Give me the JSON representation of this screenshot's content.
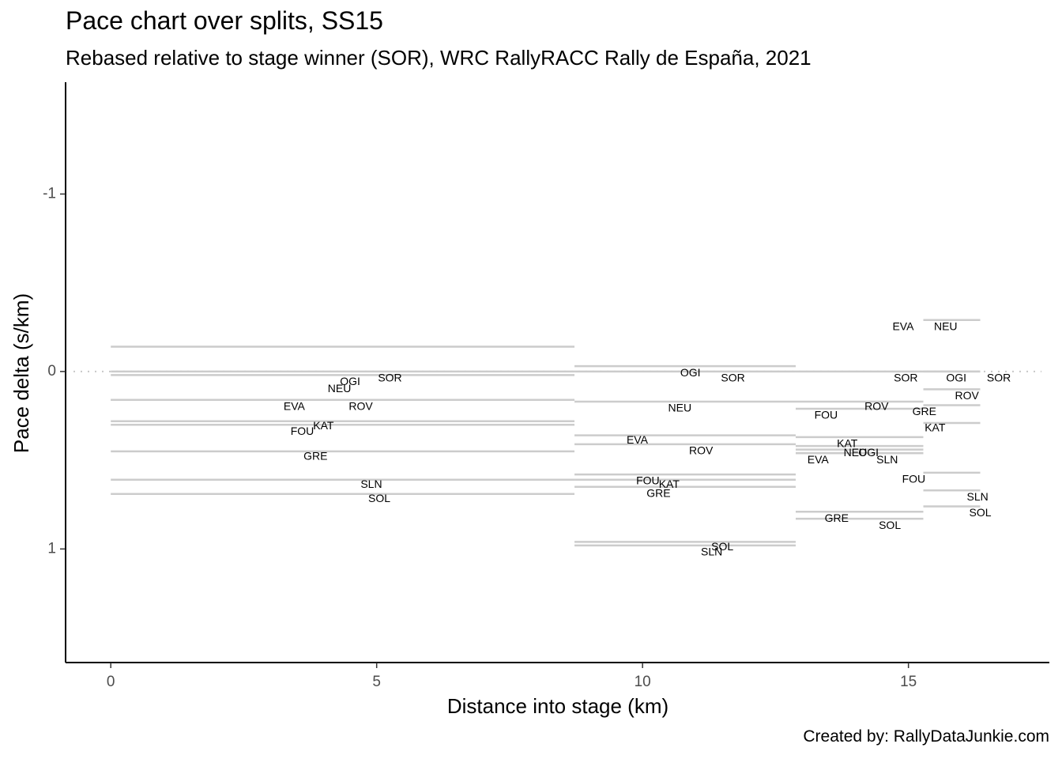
{
  "chart_data": {
    "type": "line",
    "title": "Pace chart over splits, SS15",
    "subtitle": "Rebased relative to stage winner (SOR), WRC RallyRACC Rally de España, 2021",
    "caption": "Created by: RallyDataJunkie.com",
    "xlabel": "Distance into stage (km)",
    "ylabel": "Pace delta (s/km)",
    "xlim": [
      -0.85,
      17.65
    ],
    "ylim": [
      1.64,
      -1.63
    ],
    "y_reversed": true,
    "x_ticks": [
      {
        "value": 0,
        "label": "0"
      },
      {
        "value": 5,
        "label": "5"
      },
      {
        "value": 10,
        "label": "10"
      },
      {
        "value": 15,
        "label": "15"
      }
    ],
    "y_ticks": [
      {
        "value": -1,
        "label": "-1"
      },
      {
        "value": 0,
        "label": "0"
      },
      {
        "value": 1,
        "label": "1"
      }
    ],
    "reference_line": {
      "y": 0,
      "style": "dotted"
    },
    "line_color": "#cccccc",
    "splits": [
      {
        "start": 0,
        "end": 8.72,
        "drivers": [
          {
            "code": "NEU",
            "pace": -0.14,
            "label_x": 4.3,
            "label_y": 0.1
          },
          {
            "code": "SOR",
            "pace": 0.0,
            "label_x": 5.25,
            "label_y": 0.04
          },
          {
            "code": "OGI",
            "pace": 0.02,
            "label_x": 4.5,
            "label_y": 0.06
          },
          {
            "code": "ROV",
            "pace": 0.16,
            "label_x": 4.7,
            "label_y": 0.2
          },
          {
            "code": "EVA",
            "pace": 0.16,
            "label_x": 3.45,
            "label_y": 0.2
          },
          {
            "code": "KAT",
            "pace": 0.28,
            "label_x": 4.0,
            "label_y": 0.31
          },
          {
            "code": "FOU",
            "pace": 0.3,
            "label_x": 3.6,
            "label_y": 0.34
          },
          {
            "code": "GRE",
            "pace": 0.45,
            "label_x": 3.85,
            "label_y": 0.48
          },
          {
            "code": "SLN",
            "pace": 0.61,
            "label_x": 4.9,
            "label_y": 0.64
          },
          {
            "code": "SOL",
            "pace": 0.69,
            "label_x": 5.05,
            "label_y": 0.72
          }
        ]
      },
      {
        "start": 8.72,
        "end": 12.88,
        "drivers": [
          {
            "code": "OGI",
            "pace": -0.03,
            "label_x": 10.9,
            "label_y": 0.01
          },
          {
            "code": "SOR",
            "pace": 0.0,
            "label_x": 11.7,
            "label_y": 0.04
          },
          {
            "code": "NEU",
            "pace": 0.17,
            "label_x": 10.7,
            "label_y": 0.21
          },
          {
            "code": "EVA",
            "pace": 0.36,
            "label_x": 9.9,
            "label_y": 0.39
          },
          {
            "code": "ROV",
            "pace": 0.41,
            "label_x": 11.1,
            "label_y": 0.45
          },
          {
            "code": "FOU",
            "pace": 0.58,
            "label_x": 10.1,
            "label_y": 0.62
          },
          {
            "code": "KAT",
            "pace": 0.61,
            "label_x": 10.5,
            "label_y": 0.64
          },
          {
            "code": "GRE",
            "pace": 0.65,
            "label_x": 10.3,
            "label_y": 0.69
          },
          {
            "code": "SOL",
            "pace": 0.96,
            "label_x": 11.5,
            "label_y": 0.99
          },
          {
            "code": "SLN",
            "pace": 0.98,
            "label_x": 11.3,
            "label_y": 1.02
          }
        ]
      },
      {
        "start": 12.88,
        "end": 15.28,
        "drivers": [
          {
            "code": "SOR",
            "pace": 0.0,
            "label_x": 14.95,
            "label_y": 0.04
          },
          {
            "code": "ROV",
            "pace": 0.17,
            "label_x": 14.4,
            "label_y": 0.2
          },
          {
            "code": "FOU",
            "pace": 0.21,
            "label_x": 13.45,
            "label_y": 0.25
          },
          {
            "code": "KAT",
            "pace": 0.37,
            "label_x": 13.85,
            "label_y": 0.41
          },
          {
            "code": "NEU",
            "pace": 0.42,
            "label_x": 14.0,
            "label_y": 0.46
          },
          {
            "code": "OGI",
            "pace": 0.44,
            "label_x": 14.25,
            "label_y": 0.46
          },
          {
            "code": "EVA",
            "pace": 0.46,
            "label_x": 13.3,
            "label_y": 0.5
          },
          {
            "code": "SLN",
            "pace": 0.46,
            "label_x": 14.6,
            "label_y": 0.5
          },
          {
            "code": "GRE",
            "pace": 0.79,
            "label_x": 13.65,
            "label_y": 0.83
          },
          {
            "code": "SOL",
            "pace": 0.83,
            "label_x": 14.65,
            "label_y": 0.87
          }
        ]
      },
      {
        "start": 15.28,
        "end": 16.35,
        "drivers": [
          {
            "code": "NEU",
            "pace": -0.29,
            "label_x": 15.7,
            "label_y": -0.25
          },
          {
            "code": "EVA",
            "pace": -0.29,
            "label_x": 14.9,
            "label_y": -0.25
          },
          {
            "code": "SOR",
            "pace": 0.0,
            "label_x": 16.7,
            "label_y": 0.04
          },
          {
            "code": "OGI",
            "pace": 0.0,
            "label_x": 15.9,
            "label_y": 0.04
          },
          {
            "code": "ROV",
            "pace": 0.1,
            "label_x": 16.1,
            "label_y": 0.14
          },
          {
            "code": "GRE",
            "pace": 0.19,
            "label_x": 15.3,
            "label_y": 0.23
          },
          {
            "code": "KAT",
            "pace": 0.29,
            "label_x": 15.5,
            "label_y": 0.32
          },
          {
            "code": "FOU",
            "pace": 0.57,
            "label_x": 15.1,
            "label_y": 0.61
          },
          {
            "code": "SLN",
            "pace": 0.67,
            "label_x": 16.3,
            "label_y": 0.71
          },
          {
            "code": "SOL",
            "pace": 0.76,
            "label_x": 16.35,
            "label_y": 0.8
          }
        ]
      }
    ]
  }
}
